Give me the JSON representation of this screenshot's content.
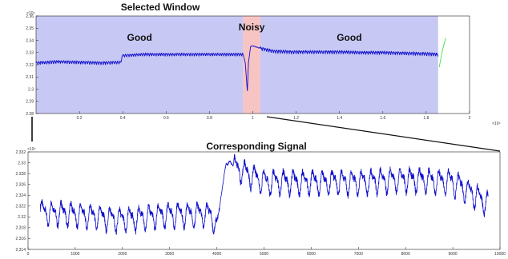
{
  "colors": {
    "good_region": "#c8c8f5",
    "noisy_region": "#f7c4c4",
    "signal": "#1010cc",
    "tail_signal": "#44dd44",
    "axis": "#222222"
  },
  "chart_data": [
    {
      "type": "line",
      "title": "Selected Window",
      "x_exponent_label": "×10⁴",
      "y_exponent_label": "×10⁴",
      "xlim": [
        0,
        2
      ],
      "ylim": [
        2.28,
        2.36
      ],
      "x_ticks": [
        "0.2",
        "0.4",
        "0.6",
        "0.8",
        "1",
        "1.2",
        "1.4",
        "1.6",
        "1.8",
        "2"
      ],
      "y_ticks": [
        "2.28",
        "2.29",
        "2.3",
        "2.31",
        "2.32",
        "2.33",
        "2.34",
        "2.35",
        "2.36"
      ],
      "regions": [
        {
          "label": "Good",
          "kind": "good",
          "x_start": 0.0,
          "x_end": 0.955
        },
        {
          "label": "Noisy",
          "kind": "noisy",
          "x_start": 0.955,
          "x_end": 1.035
        },
        {
          "label": "Good",
          "kind": "good",
          "x_start": 1.035,
          "x_end": 1.855
        }
      ],
      "series": [
        {
          "points": [
            [
              0.0,
              2.3215
            ],
            [
              0.1,
              2.3225
            ],
            [
              0.2,
              2.322
            ],
            [
              0.3,
              2.3215
            ],
            [
              0.39,
              2.322
            ],
            [
              0.4,
              2.3275
            ],
            [
              0.5,
              2.3285
            ],
            [
              0.6,
              2.3285
            ],
            [
              0.7,
              2.3285
            ],
            [
              0.8,
              2.3285
            ],
            [
              0.9,
              2.3285
            ],
            [
              0.95,
              2.3285
            ],
            [
              0.955,
              2.3285
            ],
            [
              0.965,
              2.322
            ],
            [
              0.975,
              2.298
            ],
            [
              0.98,
              2.322
            ],
            [
              0.99,
              2.335
            ],
            [
              1.0,
              2.3355
            ],
            [
              1.035,
              2.3335
            ],
            [
              1.1,
              2.331
            ],
            [
              1.2,
              2.3305
            ],
            [
              1.3,
              2.3305
            ],
            [
              1.4,
              2.3305
            ],
            [
              1.5,
              2.33
            ],
            [
              1.6,
              2.33
            ],
            [
              1.7,
              2.3295
            ],
            [
              1.8,
              2.329
            ],
            [
              1.855,
              2.3285
            ]
          ],
          "oscillation": [
            {
              "x_start": 0.0,
              "x_end": 0.4,
              "period": 0.0104,
              "amplitude": 0.0018
            },
            {
              "x_start": 0.4,
              "x_end": 0.955,
              "period": 0.0104,
              "amplitude": 0.0017
            },
            {
              "x_start": 0.955,
              "x_end": 1.035,
              "period": 0.0104,
              "amplitude": 0.0004
            },
            {
              "x_start": 1.035,
              "x_end": 1.855,
              "period": 0.0104,
              "amplitude": 0.0019
            }
          ]
        },
        {
          "kind": "tail",
          "points": [
            [
              1.86,
              2.318
            ],
            [
              1.875,
              2.332
            ],
            [
              1.89,
              2.342
            ]
          ]
        }
      ]
    },
    {
      "type": "line",
      "title": "Corresponding Signal",
      "y_exponent_label": "×10⁴",
      "xlim": [
        0,
        10000
      ],
      "ylim": [
        2.314,
        2.332
      ],
      "x_ticks": [
        "0",
        "1000",
        "2000",
        "3000",
        "4000",
        "5000",
        "6000",
        "7000",
        "8000",
        "9000",
        "10000"
      ],
      "y_ticks": [
        "2.314",
        "2.316",
        "2.318",
        "2.32",
        "2.322",
        "2.324",
        "2.326",
        "2.328",
        "2.33",
        "2.332"
      ],
      "series": [
        {
          "points": [
            [
              260,
              2.321
            ],
            [
              1000,
              2.3205
            ],
            [
              2000,
              2.3195
            ],
            [
              3000,
              2.3205
            ],
            [
              3900,
              2.3205
            ],
            [
              4000,
              2.3175
            ],
            [
              4200,
              2.3305
            ],
            [
              4300,
              2.3295
            ],
            [
              5000,
              2.3265
            ],
            [
              6000,
              2.3265
            ],
            [
              7000,
              2.3265
            ],
            [
              8000,
              2.327
            ],
            [
              9000,
              2.3265
            ],
            [
              9750,
              2.3225
            ]
          ],
          "oscillation": [
            {
              "x_start": 260,
              "x_end": 4050,
              "period": 206,
              "amplitude": 0.0034
            },
            {
              "x_start": 4050,
              "x_end": 4350,
              "period": 206,
              "amplitude": 0.001
            },
            {
              "x_start": 4350,
              "x_end": 9750,
              "period": 206,
              "amplitude": 0.0035
            }
          ]
        }
      ]
    }
  ]
}
